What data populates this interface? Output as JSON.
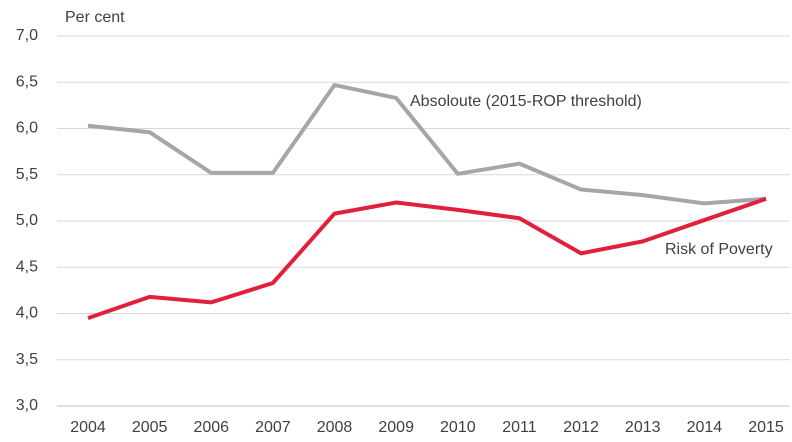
{
  "chart_data": {
    "type": "line",
    "y_label": "Per cent",
    "categories": [
      "2004",
      "2005",
      "2006",
      "2007",
      "2008",
      "2009",
      "2010",
      "2011",
      "2012",
      "2013",
      "2014",
      "2015"
    ],
    "series": [
      {
        "name": "Absoloute (2015-ROP threshold)",
        "color": "#a6a6a6",
        "values": [
          6.03,
          5.96,
          5.52,
          5.52,
          6.47,
          6.33,
          5.51,
          5.62,
          5.34,
          5.28,
          5.19,
          5.24
        ]
      },
      {
        "name": "Risk of Poverty",
        "color": "#e0203c",
        "values": [
          3.95,
          4.18,
          4.12,
          4.33,
          5.08,
          5.2,
          5.12,
          5.03,
          4.65,
          4.78,
          5.01,
          5.24
        ]
      }
    ],
    "ylim": [
      3,
      7
    ],
    "yticks": [
      {
        "value": 3,
        "label": "3,0"
      },
      {
        "value": 3.5,
        "label": "3,5"
      },
      {
        "value": 4,
        "label": "4,0"
      },
      {
        "value": 4.5,
        "label": "4,5"
      },
      {
        "value": 5,
        "label": "5,0"
      },
      {
        "value": 5.5,
        "label": "5,5"
      },
      {
        "value": 6,
        "label": "6,0"
      },
      {
        "value": 6.5,
        "label": "6,5"
      },
      {
        "value": 7,
        "label": "7,0"
      }
    ],
    "grid": true
  }
}
